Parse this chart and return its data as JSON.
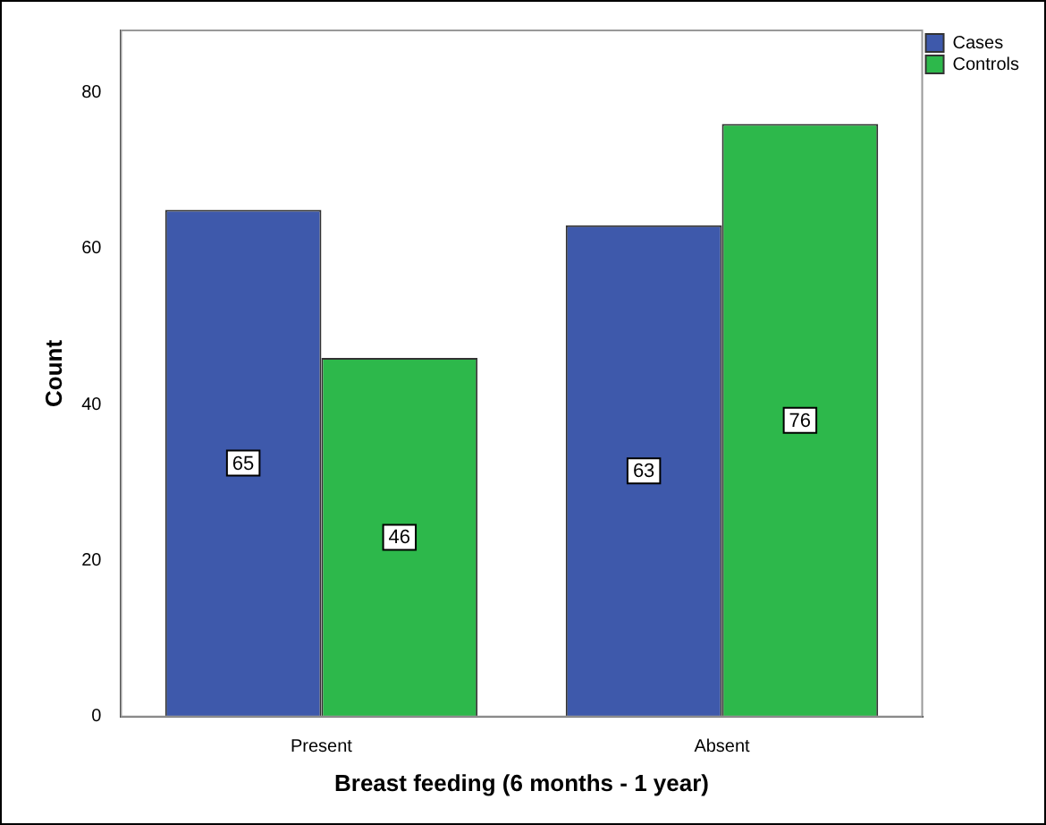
{
  "chart_data": {
    "type": "bar",
    "xlabel": "Breast feeding (6 months - 1 year)",
    "ylabel": "Count",
    "categories": [
      "Present",
      "Absent"
    ],
    "series": [
      {
        "name": "Cases",
        "color": "#3e59ab",
        "values": [
          65,
          63
        ]
      },
      {
        "name": "Controls",
        "color": "#2db84b",
        "values": [
          46,
          76
        ]
      }
    ],
    "ylim": [
      0,
      88
    ],
    "yticks": [
      0,
      20,
      40,
      60,
      80
    ],
    "grid": false,
    "legend": "top right",
    "data_labels": true
  }
}
